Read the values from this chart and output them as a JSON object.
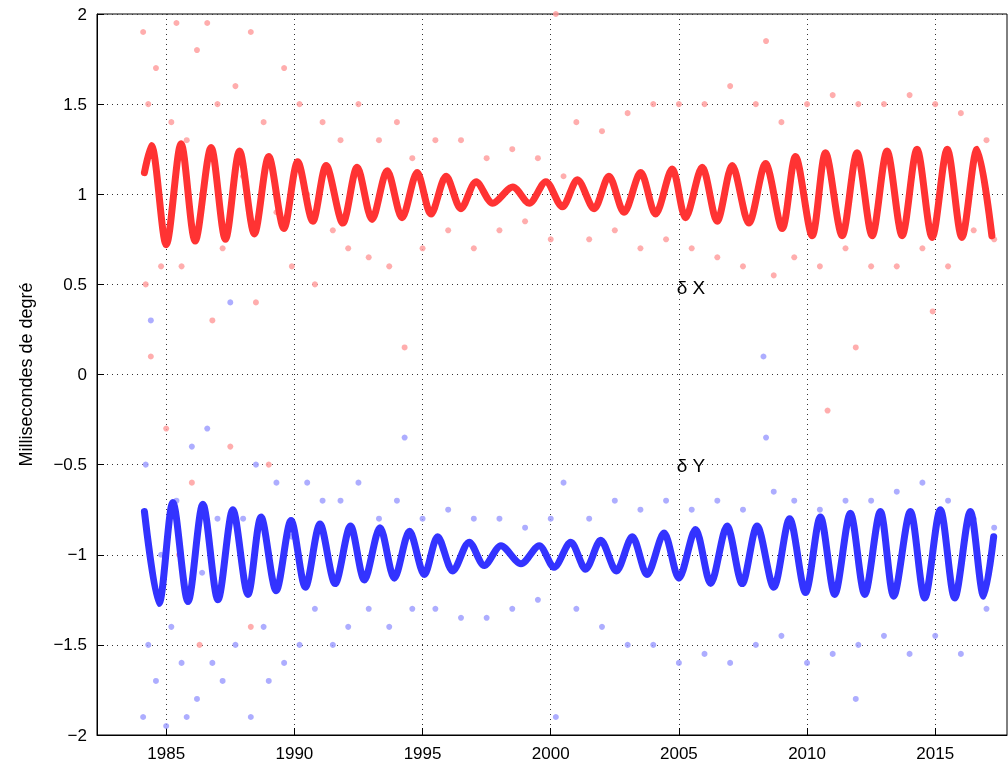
{
  "chart_data": {
    "type": "line",
    "ylabel": "Millisecondes de degré",
    "xlim": [
      1982.3,
      2017.8
    ],
    "ylim": [
      -2,
      2
    ],
    "xticks": [
      1985,
      1990,
      1995,
      2000,
      2005,
      2010,
      2015
    ],
    "yticks": [
      {
        "value": -2,
        "label": "−2"
      },
      {
        "value": -1.5,
        "label": "−1.5"
      },
      {
        "value": -1,
        "label": "−1"
      },
      {
        "value": -0.5,
        "label": "−0.5"
      },
      0,
      0.5,
      1,
      1.5,
      2
    ],
    "grid": true,
    "annotations": [
      "δ X",
      "δ Y"
    ],
    "series": [
      {
        "type": "scatter",
        "marker": "circle",
        "color": "#ff9999",
        "x": [
          1984.1,
          1984.2,
          1984.3,
          1984.4,
          1984.6,
          1984.8,
          1985.0,
          1985.2,
          1985.4,
          1985.6,
          1985.8,
          1986.0,
          1986.2,
          1986.4,
          1986.6,
          1986.8,
          1987.0,
          1987.2,
          1987.5,
          1987.7,
          1988.0,
          1988.3,
          1988.5,
          1988.8,
          1989.0,
          1989.3,
          1989.6,
          1989.9,
          1990.2,
          1990.5,
          1990.8,
          1991.1,
          1991.5,
          1991.8,
          1992.1,
          1992.5,
          1992.9,
          1993.3,
          1993.7,
          1994.0,
          1994.3,
          1994.6,
          1995.0,
          1995.5,
          1996.0,
          1996.5,
          1997.0,
          1997.5,
          1998.0,
          1998.5,
          1999.0,
          1999.5,
          2000.0,
          2000.2,
          2000.5,
          2001.0,
          2001.5,
          2002.0,
          2002.5,
          2003.0,
          2003.5,
          2004.0,
          2004.5,
          2005.0,
          2005.5,
          2006.0,
          2006.5,
          2007.0,
          2007.5,
          2008.0,
          2008.4,
          2008.7,
          2009.0,
          2009.5,
          2010.0,
          2010.5,
          2010.8,
          2011.0,
          2011.5,
          2011.9,
          2012.0,
          2012.5,
          2013.0,
          2013.5,
          2014.0,
          2014.5,
          2014.9,
          2015.0,
          2015.5,
          2016.0,
          2016.5,
          2017.0,
          2017.3,
          1985.5,
          1986.3,
          1988.3
        ],
        "values": [
          1.9,
          0.5,
          1.5,
          0.1,
          1.7,
          0.6,
          -0.3,
          1.4,
          1.95,
          0.6,
          1.3,
          -0.6,
          1.8,
          1.0,
          1.95,
          0.3,
          1.5,
          0.7,
          -0.4,
          1.6,
          1.1,
          1.9,
          0.4,
          1.4,
          -0.5,
          0.9,
          1.7,
          0.6,
          1.5,
          1.0,
          0.5,
          1.4,
          0.8,
          1.3,
          0.7,
          1.5,
          0.65,
          1.3,
          0.6,
          1.4,
          0.15,
          1.2,
          0.7,
          1.3,
          0.8,
          1.3,
          0.7,
          1.2,
          0.8,
          1.25,
          0.85,
          1.2,
          0.75,
          2.0,
          1.1,
          1.4,
          0.75,
          1.35,
          0.8,
          1.45,
          0.7,
          1.5,
          0.75,
          1.5,
          0.7,
          1.5,
          0.65,
          1.6,
          0.6,
          1.5,
          1.85,
          0.55,
          1.4,
          0.65,
          1.5,
          0.6,
          -0.2,
          1.55,
          0.7,
          0.15,
          1.5,
          0.6,
          1.5,
          0.6,
          1.55,
          0.7,
          0.35,
          1.5,
          0.6,
          1.45,
          0.8,
          1.3,
          0.75,
          -1.0,
          -1.5,
          -1.4
        ]
      },
      {
        "type": "scatter",
        "marker": "circle",
        "color": "#9999ff",
        "x": [
          1984.1,
          1984.2,
          1984.3,
          1984.4,
          1984.6,
          1984.8,
          1985.0,
          1985.2,
          1985.4,
          1985.6,
          1985.8,
          1986.0,
          1986.2,
          1986.4,
          1986.6,
          1986.8,
          1987.0,
          1987.2,
          1987.5,
          1987.7,
          1988.0,
          1988.3,
          1988.5,
          1988.8,
          1989.0,
          1989.3,
          1989.6,
          1989.9,
          1990.2,
          1990.5,
          1990.8,
          1991.1,
          1991.5,
          1991.8,
          1992.1,
          1992.5,
          1992.9,
          1993.3,
          1993.7,
          1994.0,
          1994.3,
          1994.6,
          1995.0,
          1995.5,
          1996.0,
          1996.5,
          1997.0,
          1997.5,
          1998.0,
          1998.5,
          1999.0,
          1999.5,
          2000.0,
          2000.2,
          2000.5,
          2001.0,
          2001.5,
          2002.0,
          2002.5,
          2003.0,
          2003.5,
          2004.0,
          2004.5,
          2005.0,
          2005.5,
          2006.0,
          2006.5,
          2007.0,
          2007.5,
          2008.0,
          2008.3,
          2008.4,
          2008.7,
          2009.0,
          2009.5,
          2010.0,
          2010.5,
          2011.0,
          2011.5,
          2011.9,
          2012.0,
          2012.5,
          2013.0,
          2013.5,
          2014.0,
          2014.5,
          2015.0,
          2015.5,
          2016.0,
          2016.5,
          2017.0,
          2017.3
        ],
        "values": [
          -1.9,
          -0.5,
          -1.5,
          0.3,
          -1.7,
          -1.0,
          -1.95,
          -1.4,
          -0.7,
          -1.6,
          -1.9,
          -0.4,
          -1.8,
          -1.1,
          -0.3,
          -1.6,
          -0.8,
          -1.7,
          0.4,
          -1.5,
          -0.8,
          -1.9,
          -0.5,
          -1.4,
          -1.7,
          -0.6,
          -1.6,
          -0.9,
          -1.5,
          -0.6,
          -1.3,
          -0.7,
          -1.5,
          -0.7,
          -1.4,
          -0.6,
          -1.3,
          -0.8,
          -1.4,
          -0.7,
          -0.35,
          -1.3,
          -0.8,
          -1.3,
          -0.75,
          -1.35,
          -0.8,
          -1.35,
          -0.8,
          -1.3,
          -0.85,
          -1.25,
          -0.8,
          -1.9,
          -0.6,
          -1.3,
          -0.8,
          -1.4,
          -0.7,
          -1.5,
          -0.75,
          -1.5,
          -0.7,
          -1.6,
          -0.75,
          -1.55,
          -0.7,
          -1.6,
          -0.75,
          -1.5,
          0.1,
          -0.35,
          -0.65,
          -1.45,
          -0.7,
          -1.6,
          -0.75,
          -1.55,
          -0.7,
          -1.8,
          -1.5,
          -0.7,
          -1.45,
          -0.65,
          -1.55,
          -0.6,
          -1.45,
          -0.7,
          -1.55,
          -0.8,
          -1.3,
          -0.85
        ]
      },
      {
        "marker": "none",
        "color": "#ff3333",
        "x": [
          1984.15,
          1984.42,
          1985.0,
          1985.58,
          1986.13,
          1986.75,
          1987.31,
          1987.86,
          1988.44,
          1989.0,
          1989.59,
          1990.13,
          1990.72,
          1991.24,
          1991.89,
          1992.45,
          1993.03,
          1993.62,
          1994.2,
          1994.79,
          1995.33,
          1995.92,
          1996.5,
          1997.09,
          1997.74,
          1998.52,
          1999.16,
          1999.81,
          2000.45,
          2001.04,
          2001.69,
          2002.27,
          2002.86,
          2003.51,
          2004.09,
          2004.74,
          2005.26,
          2005.91,
          2006.49,
          2007.08,
          2007.73,
          2008.38,
          2009.03,
          2009.55,
          2010.2,
          2010.72,
          2011.37,
          2011.95,
          2012.54,
          2013.12,
          2013.71,
          2014.29,
          2014.88,
          2015.47,
          2016.04,
          2016.63,
          2017.21
        ],
        "values": [
          1.12,
          1.27,
          0.72,
          1.28,
          0.74,
          1.26,
          0.75,
          1.24,
          0.78,
          1.21,
          0.81,
          1.18,
          0.85,
          1.16,
          0.84,
          1.15,
          0.86,
          1.13,
          0.87,
          1.12,
          0.89,
          1.1,
          0.92,
          1.07,
          0.95,
          1.04,
          0.95,
          1.07,
          0.93,
          1.08,
          0.92,
          1.1,
          0.9,
          1.12,
          0.89,
          1.14,
          0.87,
          1.15,
          0.85,
          1.16,
          0.84,
          1.17,
          0.81,
          1.21,
          0.77,
          1.23,
          0.77,
          1.23,
          0.77,
          1.24,
          0.77,
          1.25,
          0.76,
          1.25,
          0.76,
          1.25,
          0.77
        ]
      },
      {
        "marker": "none",
        "color": "#3333ff",
        "x": [
          1984.15,
          1984.72,
          1985.26,
          1985.85,
          1986.43,
          1987.02,
          1987.6,
          1988.19,
          1988.7,
          1989.29,
          1989.87,
          1990.43,
          1991.0,
          1991.59,
          1992.19,
          1992.73,
          1993.34,
          1993.9,
          1994.49,
          1995.07,
          1995.59,
          1996.18,
          1996.82,
          1997.41,
          1998.06,
          1998.84,
          1999.55,
          2000.13,
          2000.78,
          2001.36,
          2001.95,
          2002.56,
          2003.18,
          2003.76,
          2004.42,
          2005.0,
          2005.65,
          2006.24,
          2006.88,
          2007.47,
          2008.05,
          2008.7,
          2009.32,
          2009.94,
          2010.52,
          2011.08,
          2011.69,
          2012.25,
          2012.86,
          2013.38,
          2014.03,
          2014.59,
          2015.2,
          2015.76,
          2016.37,
          2016.89,
          2017.28
        ],
        "values": [
          -0.76,
          -1.27,
          -0.71,
          -1.26,
          -0.72,
          -1.25,
          -0.75,
          -1.22,
          -0.79,
          -1.2,
          -0.81,
          -1.18,
          -0.83,
          -1.16,
          -0.84,
          -1.14,
          -0.85,
          -1.13,
          -0.87,
          -1.11,
          -0.9,
          -1.09,
          -0.93,
          -1.06,
          -0.95,
          -1.05,
          -0.95,
          -1.07,
          -0.93,
          -1.08,
          -0.92,
          -1.09,
          -0.9,
          -1.11,
          -0.88,
          -1.13,
          -0.86,
          -1.16,
          -0.84,
          -1.16,
          -0.84,
          -1.18,
          -0.8,
          -1.21,
          -0.79,
          -1.22,
          -0.77,
          -1.22,
          -0.76,
          -1.23,
          -0.76,
          -1.24,
          -0.75,
          -1.24,
          -0.76,
          -1.23,
          -0.9
        ]
      }
    ]
  }
}
